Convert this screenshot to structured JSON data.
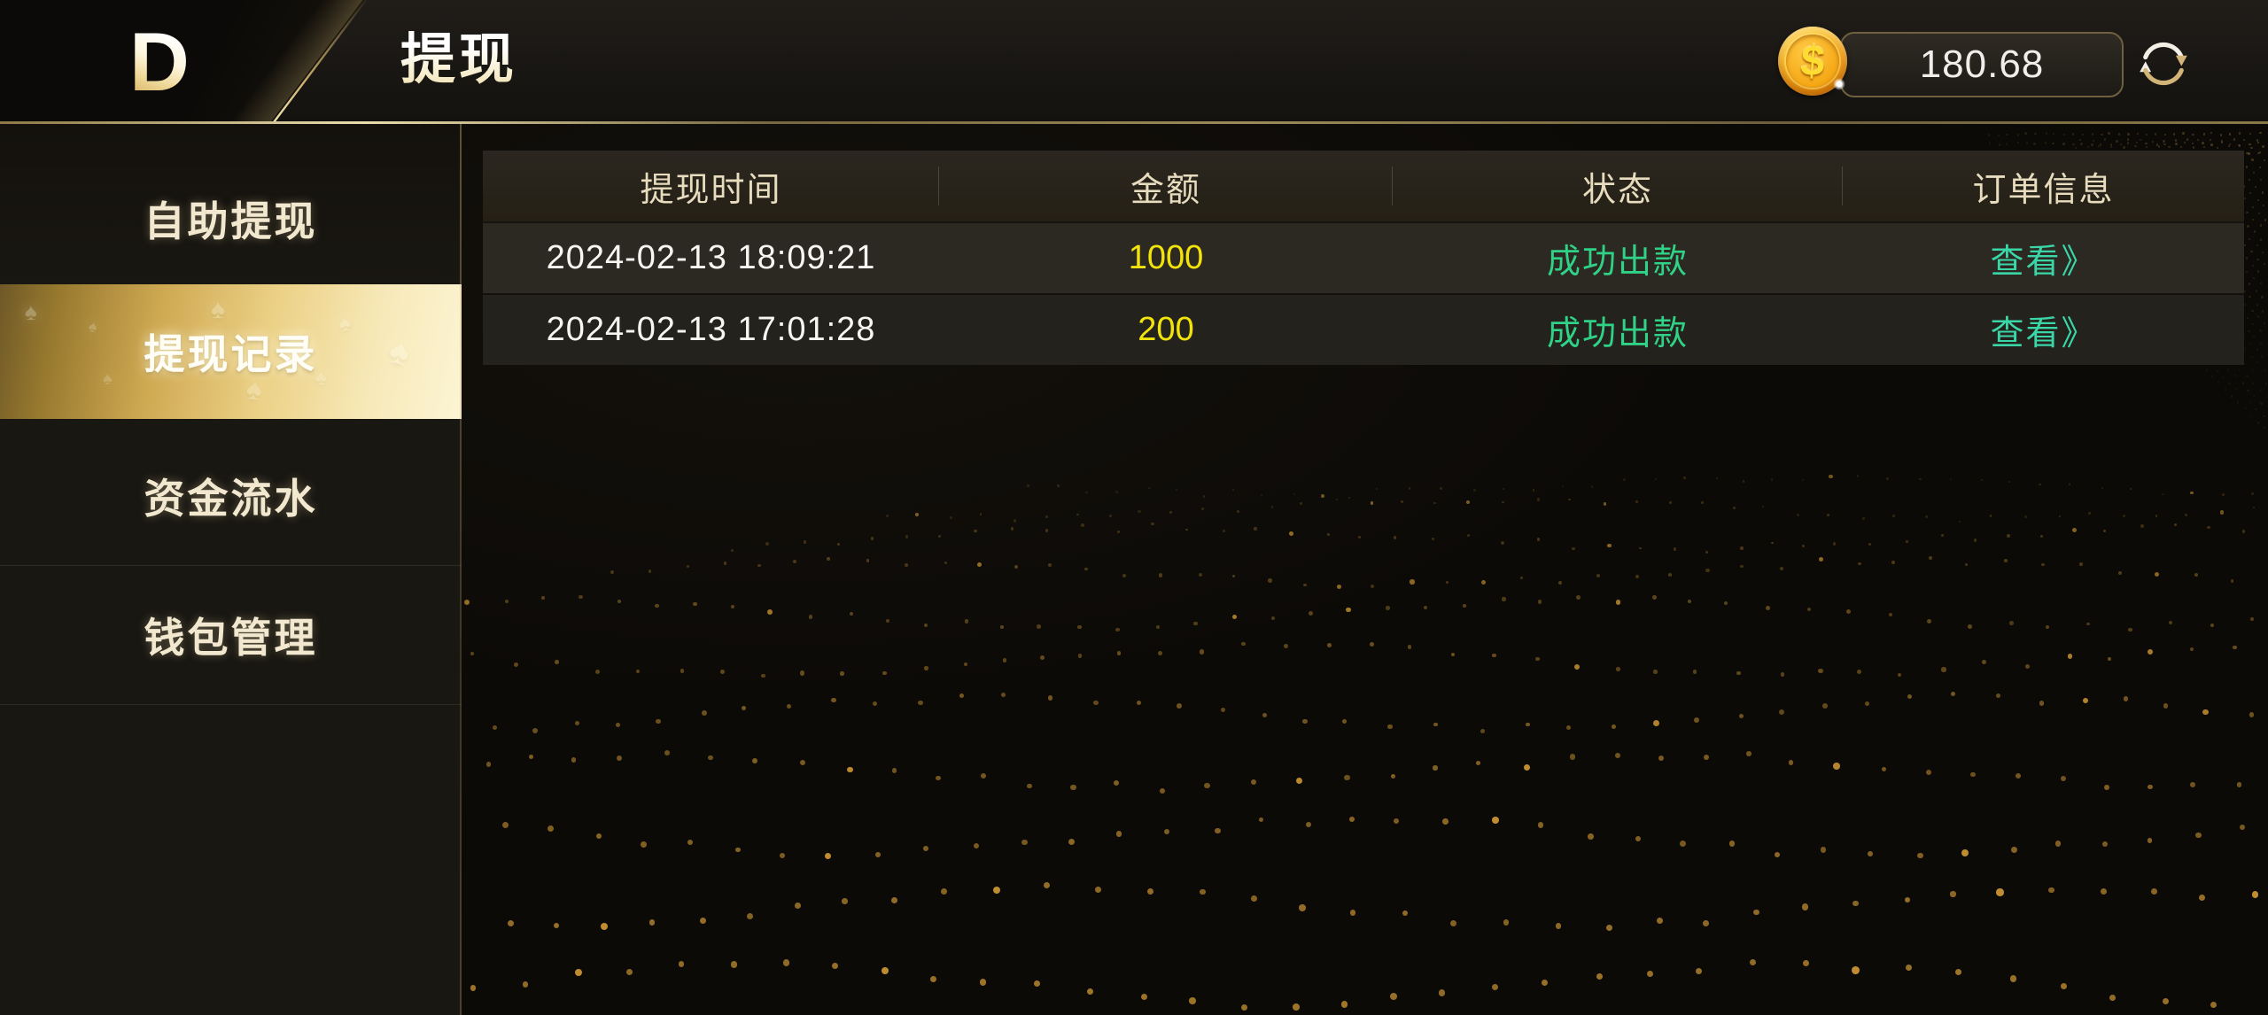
{
  "topbar": {
    "logo_letter": "D",
    "title": "提现",
    "balance": {
      "coin_symbol": "$",
      "value": "180.68"
    }
  },
  "sidebar": {
    "items": [
      {
        "label": "自助提现",
        "selected": false
      },
      {
        "label": "提现记录",
        "selected": true
      },
      {
        "label": "资金流水",
        "selected": false
      },
      {
        "label": "钱包管理",
        "selected": false
      }
    ]
  },
  "table": {
    "columns": [
      "提现时间",
      "金额",
      "状态",
      "订单信息"
    ],
    "rows": [
      {
        "time": "2024-02-13 18:09:21",
        "amount": "1000",
        "status": "成功出款",
        "action": "查看》"
      },
      {
        "time": "2024-02-13 17:01:28",
        "amount": "200",
        "status": "成功出款",
        "action": "查看》"
      }
    ]
  },
  "colors": {
    "accent_gold": "#d9b96a",
    "amount": "#f2e40a",
    "status_success": "#30d287",
    "action_link": "#3bd6a8",
    "selected_item_gradient_start": "#6e5827",
    "selected_item_gradient_end": "#fcf4d4"
  }
}
